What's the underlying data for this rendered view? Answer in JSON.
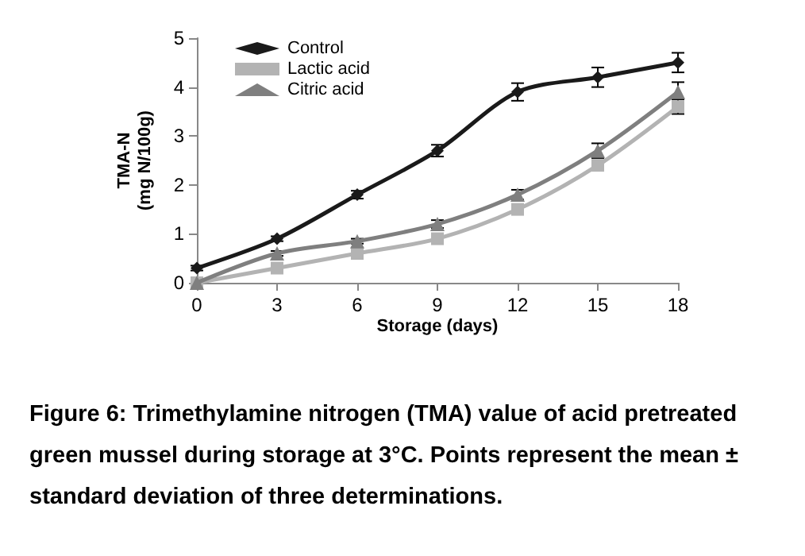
{
  "chart_data": {
    "type": "line",
    "xlabel": "Storage (days)",
    "ylabel": "TMA-N\n(mg N/100g)",
    "x": [
      0,
      3,
      6,
      9,
      12,
      15,
      18
    ],
    "series": [
      {
        "name": "Control",
        "color": "#1a1a1a",
        "marker": "diamond",
        "values": [
          0.3,
          0.9,
          1.8,
          2.7,
          3.9,
          4.2,
          4.5
        ],
        "errors": [
          0.05,
          0.05,
          0.08,
          0.12,
          0.18,
          0.2,
          0.2
        ]
      },
      {
        "name": "Lactic acid",
        "color": "#b3b3b3",
        "marker": "square",
        "values": [
          0,
          0.3,
          0.6,
          0.9,
          1.5,
          2.4,
          3.6
        ],
        "errors": [
          null,
          null,
          null,
          null,
          null,
          0.1,
          0.15
        ]
      },
      {
        "name": "Citric acid",
        "color": "#7f7f7f",
        "marker": "triangle",
        "values": [
          0,
          0.6,
          0.85,
          1.2,
          1.8,
          2.7,
          3.9
        ],
        "errors": [
          0.03,
          0.05,
          0.05,
          0.08,
          0.1,
          0.15,
          0.2
        ]
      }
    ],
    "xlim": [
      0,
      18
    ],
    "xticks": [
      0,
      3,
      6,
      9,
      12,
      15,
      18
    ],
    "ylim": [
      0,
      5
    ],
    "yticks": [
      0,
      1,
      2,
      3,
      4,
      5
    ],
    "grid": false,
    "legend": "top left",
    "line_style": "solid",
    "annotations": [
      "Figure 6: Trimethylamine nitrogen (TMA) value of acid pretreated green mussel during storage at 3°C. Points represent the mean ± standard deviation of three determinations."
    ]
  }
}
